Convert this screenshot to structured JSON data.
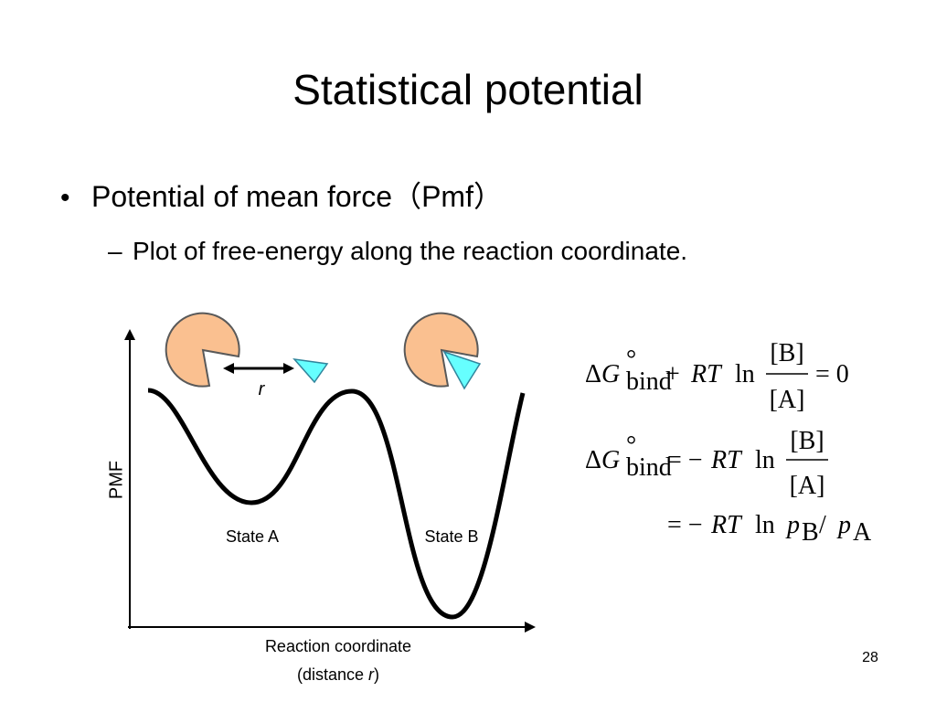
{
  "slide": {
    "title": "Statistical potential",
    "bullets": [
      {
        "text": "Potential of mean force（Pmf）",
        "sub": [
          "Plot of free-energy along the reaction coordinate."
        ]
      }
    ],
    "diagram": {
      "y_axis_label": "PMF",
      "x_axis_label": {
        "line1": "Reaction coordinate",
        "line2_start": "(distance ",
        "line2_var": "r",
        "line2_end": ")"
      },
      "distance_label": "r",
      "states": [
        "State A",
        "State B"
      ]
    },
    "equations": [
      {
        "delta": "Δ",
        "symbol": "G",
        "superscript": "°",
        "subscript": "bind",
        "op": "+",
        "rt": "RT",
        "ln": "ln",
        "numerator": "[B]",
        "denominator": "[A]",
        "rhs": "= 0"
      },
      {
        "delta": "Δ",
        "symbol": "G",
        "superscript": "°",
        "subscript": "bind",
        "op": "= −",
        "rt": "RT",
        "ln": "ln",
        "numerator": "[B]",
        "denominator": "[A]"
      },
      {
        "op": "= −",
        "rt": "RT",
        "ln": "ln",
        "p1": "p",
        "sub1": "B",
        "slash": "/",
        "p2": "p",
        "sub2": "A"
      }
    ],
    "page_number": "28"
  }
}
